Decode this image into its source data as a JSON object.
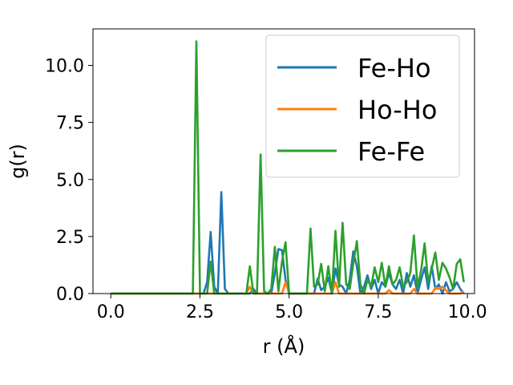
{
  "chart_data": {
    "type": "line",
    "xlabel": "r (Å)",
    "ylabel": "g(r)",
    "xlim": [
      -0.5,
      10.2
    ],
    "ylim": [
      0,
      11.6
    ],
    "xticks": [
      0.0,
      2.5,
      5.0,
      7.5,
      10.0
    ],
    "xtick_labels": [
      "0.0",
      "2.5",
      "5.0",
      "7.5",
      "10.0"
    ],
    "yticks": [
      0.0,
      2.5,
      5.0,
      7.5,
      10.0
    ],
    "ytick_labels": [
      "0.0",
      "2.5",
      "5.0",
      "7.5",
      "10.0"
    ],
    "grid": false,
    "legend": "top-right",
    "series": [
      {
        "name": "Fe-Ho",
        "color": "#1f77b4",
        "points": [
          [
            0.0,
            0
          ],
          [
            2.6,
            0
          ],
          [
            2.7,
            0.5
          ],
          [
            2.8,
            2.7
          ],
          [
            2.9,
            0.3
          ],
          [
            3.0,
            0
          ],
          [
            3.1,
            4.45
          ],
          [
            3.2,
            0.2
          ],
          [
            3.3,
            0
          ],
          [
            3.9,
            0
          ],
          [
            4.0,
            0.2
          ],
          [
            4.1,
            0
          ],
          [
            4.5,
            0
          ],
          [
            4.6,
            0.9
          ],
          [
            4.7,
            1.95
          ],
          [
            4.8,
            1.9
          ],
          [
            4.9,
            0.6
          ],
          [
            5.0,
            0
          ],
          [
            5.7,
            0
          ],
          [
            5.8,
            0.65
          ],
          [
            5.9,
            0.15
          ],
          [
            6.0,
            0.3
          ],
          [
            6.1,
            0.7
          ],
          [
            6.2,
            0
          ],
          [
            6.3,
            1.1
          ],
          [
            6.4,
            0.4
          ],
          [
            6.5,
            0.3
          ],
          [
            6.6,
            0
          ],
          [
            6.7,
            0.6
          ],
          [
            6.8,
            1.85
          ],
          [
            6.9,
            1.2
          ],
          [
            7.0,
            0
          ],
          [
            7.1,
            0.3
          ],
          [
            7.2,
            0.8
          ],
          [
            7.3,
            0.2
          ],
          [
            7.4,
            0.6
          ],
          [
            7.5,
            0
          ],
          [
            7.6,
            0.5
          ],
          [
            7.7,
            0.3
          ],
          [
            7.8,
            0.9
          ],
          [
            7.9,
            0.4
          ],
          [
            8.0,
            0.2
          ],
          [
            8.1,
            0.6
          ],
          [
            8.2,
            0
          ],
          [
            8.3,
            0.9
          ],
          [
            8.4,
            0.3
          ],
          [
            8.5,
            0.8
          ],
          [
            8.6,
            0
          ],
          [
            8.7,
            0.6
          ],
          [
            8.8,
            1.15
          ],
          [
            8.9,
            0.2
          ],
          [
            9.0,
            1.2
          ],
          [
            9.1,
            0.2
          ],
          [
            9.2,
            0.4
          ],
          [
            9.3,
            0
          ],
          [
            9.4,
            0.5
          ],
          [
            9.5,
            0.1
          ],
          [
            9.6,
            0.2
          ],
          [
            9.7,
            0.5
          ],
          [
            9.8,
            0.2
          ],
          [
            9.9,
            0
          ]
        ]
      },
      {
        "name": "Ho-Ho",
        "color": "#ff7f0e",
        "points": [
          [
            0.0,
            0
          ],
          [
            3.8,
            0
          ],
          [
            3.9,
            0.3
          ],
          [
            4.0,
            0
          ],
          [
            4.8,
            0
          ],
          [
            4.9,
            0.5
          ],
          [
            5.0,
            0
          ],
          [
            6.2,
            0
          ],
          [
            6.3,
            0.5
          ],
          [
            6.4,
            0
          ],
          [
            7.7,
            0
          ],
          [
            7.8,
            0.15
          ],
          [
            7.9,
            0
          ],
          [
            8.4,
            0
          ],
          [
            8.5,
            0.2
          ],
          [
            8.6,
            0
          ],
          [
            9.0,
            0
          ],
          [
            9.1,
            0.25
          ],
          [
            9.2,
            0.2
          ],
          [
            9.3,
            0.3
          ],
          [
            9.4,
            0.15
          ],
          [
            9.5,
            0
          ],
          [
            9.8,
            0
          ],
          [
            9.9,
            0.1
          ]
        ]
      },
      {
        "name": "Fe-Fe",
        "color": "#2ca02c",
        "points": [
          [
            0.0,
            0
          ],
          [
            2.3,
            0
          ],
          [
            2.4,
            11.05
          ],
          [
            2.5,
            0
          ],
          [
            2.7,
            0
          ],
          [
            2.8,
            1.4
          ],
          [
            2.9,
            0
          ],
          [
            3.8,
            0
          ],
          [
            3.9,
            1.2
          ],
          [
            4.0,
            0
          ],
          [
            4.1,
            0
          ],
          [
            4.2,
            6.1
          ],
          [
            4.3,
            0.1
          ],
          [
            4.4,
            0
          ],
          [
            4.5,
            0.2
          ],
          [
            4.6,
            2.05
          ],
          [
            4.7,
            0.1
          ],
          [
            4.8,
            1.4
          ],
          [
            4.9,
            2.25
          ],
          [
            5.0,
            0
          ],
          [
            5.5,
            0
          ],
          [
            5.6,
            2.85
          ],
          [
            5.7,
            0.3
          ],
          [
            5.8,
            0.4
          ],
          [
            5.9,
            1.3
          ],
          [
            6.0,
            0.1
          ],
          [
            6.1,
            1.2
          ],
          [
            6.2,
            0
          ],
          [
            6.3,
            2.75
          ],
          [
            6.4,
            0.3
          ],
          [
            6.5,
            3.1
          ],
          [
            6.6,
            0.4
          ],
          [
            6.7,
            0.2
          ],
          [
            6.8,
            1.3
          ],
          [
            6.9,
            2.3
          ],
          [
            7.0,
            0.4
          ],
          [
            7.1,
            0
          ],
          [
            7.2,
            0.6
          ],
          [
            7.3,
            0.3
          ],
          [
            7.4,
            1.15
          ],
          [
            7.5,
            0.5
          ],
          [
            7.6,
            1.35
          ],
          [
            7.7,
            0.3
          ],
          [
            7.8,
            1.2
          ],
          [
            7.9,
            0.4
          ],
          [
            8.0,
            0.6
          ],
          [
            8.1,
            1.15
          ],
          [
            8.2,
            0.3
          ],
          [
            8.3,
            0.5
          ],
          [
            8.4,
            0.9
          ],
          [
            8.5,
            2.55
          ],
          [
            8.6,
            0.3
          ],
          [
            8.7,
            1.0
          ],
          [
            8.8,
            2.2
          ],
          [
            8.9,
            0.5
          ],
          [
            9.0,
            1.1
          ],
          [
            9.1,
            1.8
          ],
          [
            9.2,
            0.6
          ],
          [
            9.3,
            1.35
          ],
          [
            9.4,
            1.1
          ],
          [
            9.5,
            0.7
          ],
          [
            9.6,
            0.2
          ],
          [
            9.7,
            1.3
          ],
          [
            9.8,
            1.5
          ],
          [
            9.9,
            0.5
          ]
        ]
      }
    ]
  }
}
